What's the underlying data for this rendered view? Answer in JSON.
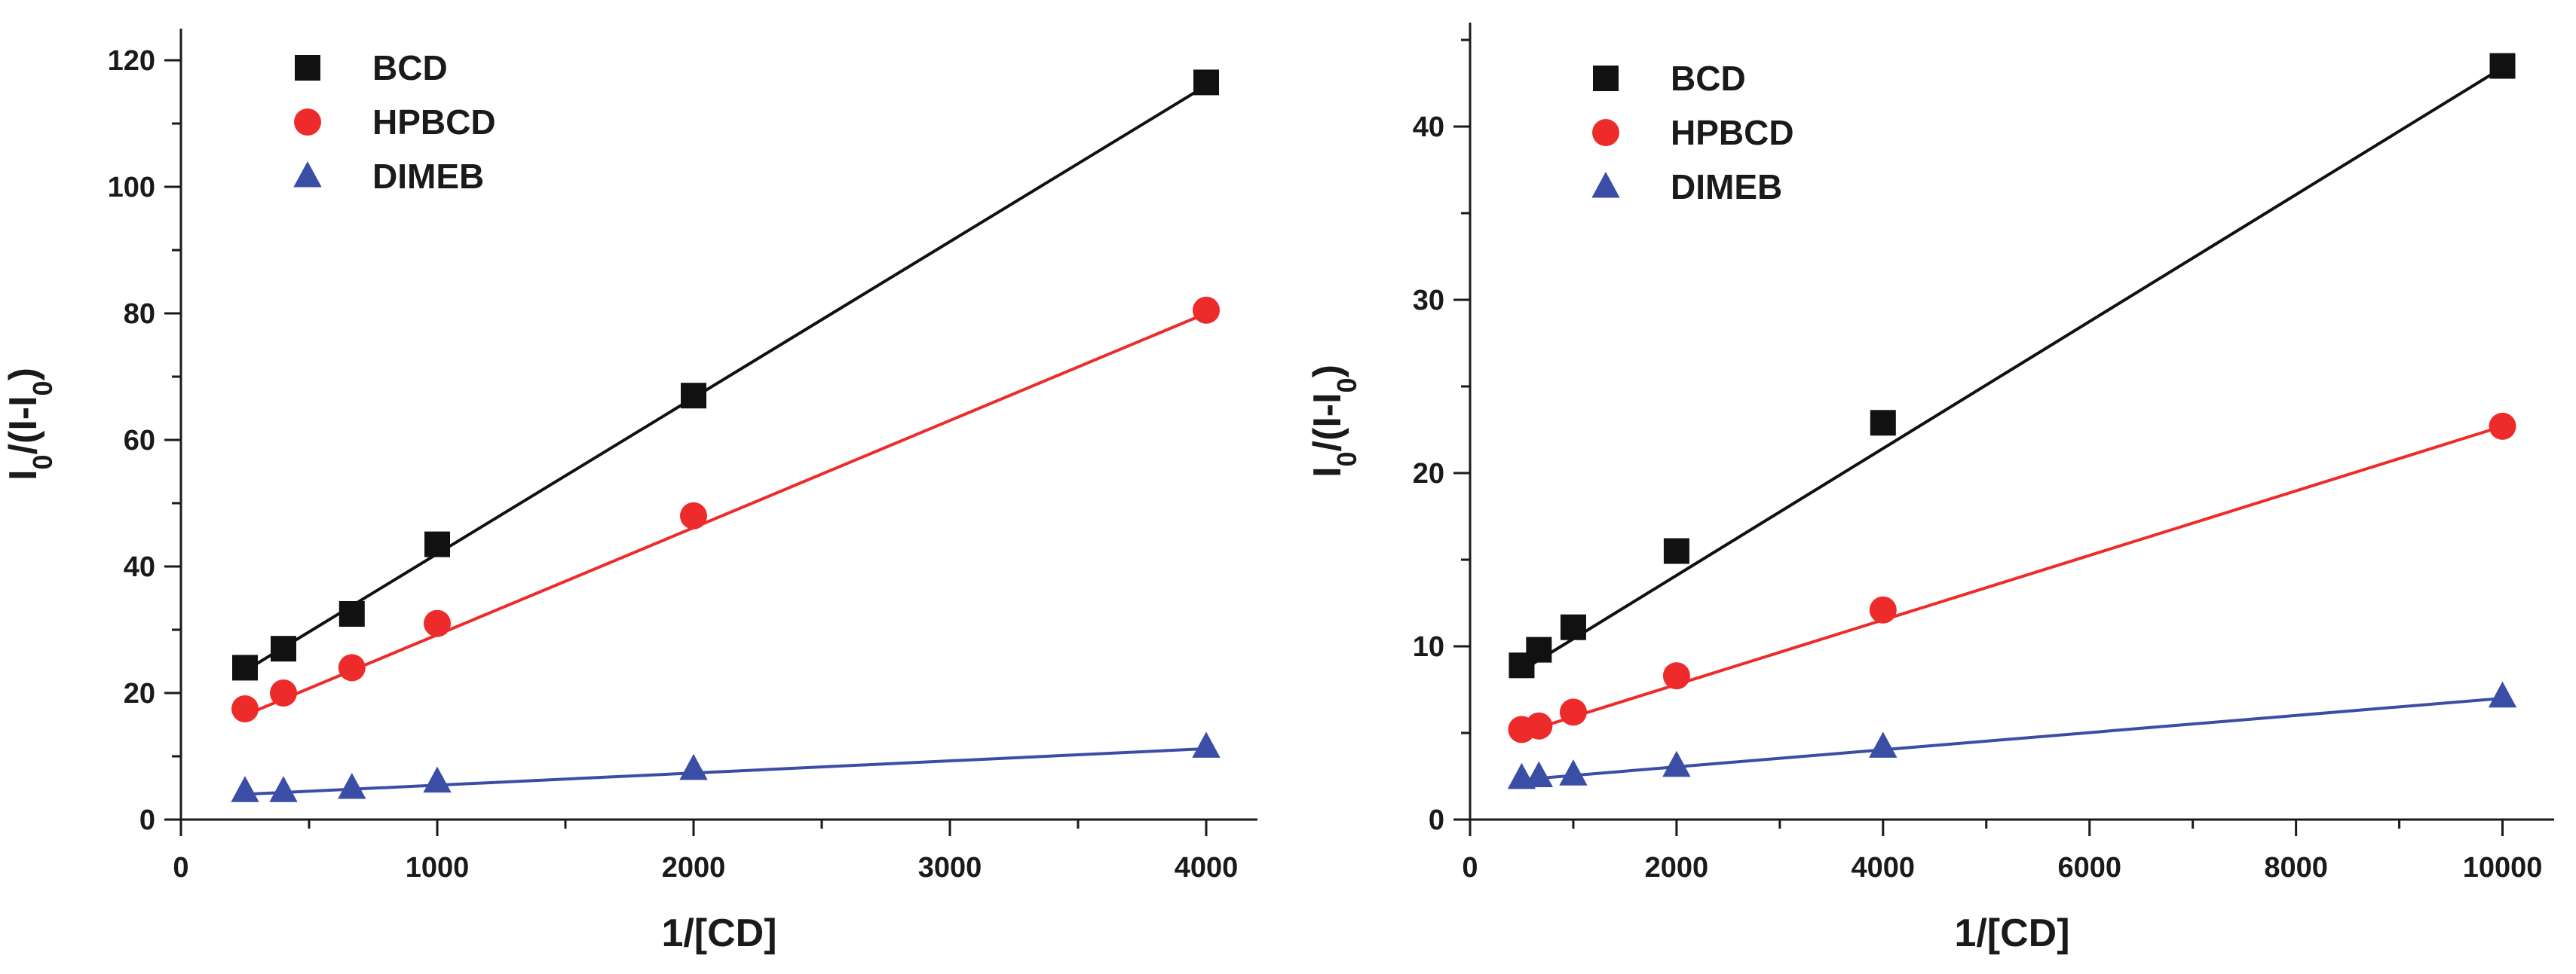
{
  "colors": {
    "BCD": "#111111",
    "HPBCD": "#ee2b2b",
    "DIMEB": "#3b4ea6",
    "axis": "#1a1a1a"
  },
  "chart_data": [
    {
      "type": "scatter",
      "title": "",
      "xlabel": "1/[CD]",
      "ylabel": "I0/(I-I0)",
      "xlim": [
        0,
        4200
      ],
      "ylim": [
        0,
        125
      ],
      "xticks": [
        0,
        1000,
        2000,
        3000,
        4000
      ],
      "xtick_labels": [
        "0",
        "1000",
        "2000",
        "3000",
        "4000"
      ],
      "yticks": [
        0,
        20,
        40,
        60,
        80,
        100,
        120
      ],
      "ytick_labels": [
        "0",
        "20",
        "40",
        "60",
        "80",
        "100",
        "120"
      ],
      "legend_position": "top-left",
      "series": [
        {
          "name": "BCD",
          "marker": "square",
          "x": [
            250,
            400,
            667,
            1000,
            2000,
            4000
          ],
          "y": [
            24,
            27,
            32.5,
            43.5,
            67,
            116.5
          ],
          "fit": [
            [
              250,
              23.5
            ],
            [
              4000,
              116
            ]
          ]
        },
        {
          "name": "HPBCD",
          "marker": "circle",
          "x": [
            250,
            400,
            667,
            1000,
            2000,
            4000
          ],
          "y": [
            17.5,
            20,
            24,
            31,
            48,
            80.5
          ],
          "fit": [
            [
              250,
              16.5
            ],
            [
              4000,
              80
            ]
          ]
        },
        {
          "name": "DIMEB",
          "marker": "triangle",
          "x": [
            250,
            400,
            667,
            1000,
            2000,
            4000
          ],
          "y": [
            4.5,
            4.5,
            5,
            6,
            8,
            11.5
          ],
          "fit": [
            [
              250,
              4
            ],
            [
              4000,
              11.2
            ]
          ]
        }
      ]
    },
    {
      "type": "scatter",
      "title": "",
      "xlabel": "1/[CD]",
      "ylabel": "I0/(I-I0)",
      "xlim": [
        0,
        10500
      ],
      "ylim": [
        0,
        46
      ],
      "xticks": [
        0,
        2000,
        4000,
        6000,
        8000,
        10000
      ],
      "xtick_labels": [
        "0",
        "2000",
        "4000",
        "6000",
        "8000",
        "10000"
      ],
      "yticks": [
        0,
        10,
        20,
        30,
        40
      ],
      "ytick_labels": [
        "0",
        "10",
        "20",
        "30",
        "40"
      ],
      "legend_position": "top-left",
      "series": [
        {
          "name": "BCD",
          "marker": "square",
          "x": [
            500,
            667,
            1000,
            2000,
            4000,
            10000
          ],
          "y": [
            8.9,
            9.8,
            11.1,
            15.5,
            22.9,
            43.5
          ],
          "fit": [
            [
              500,
              8.6
            ],
            [
              10000,
              43.4
            ]
          ]
        },
        {
          "name": "HPBCD",
          "marker": "circle",
          "x": [
            500,
            667,
            1000,
            2000,
            4000,
            10000
          ],
          "y": [
            5.2,
            5.4,
            6.2,
            8.3,
            12.1,
            22.7
          ],
          "fit": [
            [
              500,
              5.0
            ],
            [
              10000,
              22.7
            ]
          ]
        },
        {
          "name": "DIMEB",
          "marker": "triangle",
          "x": [
            500,
            667,
            1000,
            2000,
            4000,
            10000
          ],
          "y": [
            2.4,
            2.5,
            2.6,
            3.1,
            4.2,
            7.1
          ],
          "fit": [
            [
              500,
              2.3
            ],
            [
              10000,
              7.0
            ]
          ]
        }
      ]
    }
  ]
}
